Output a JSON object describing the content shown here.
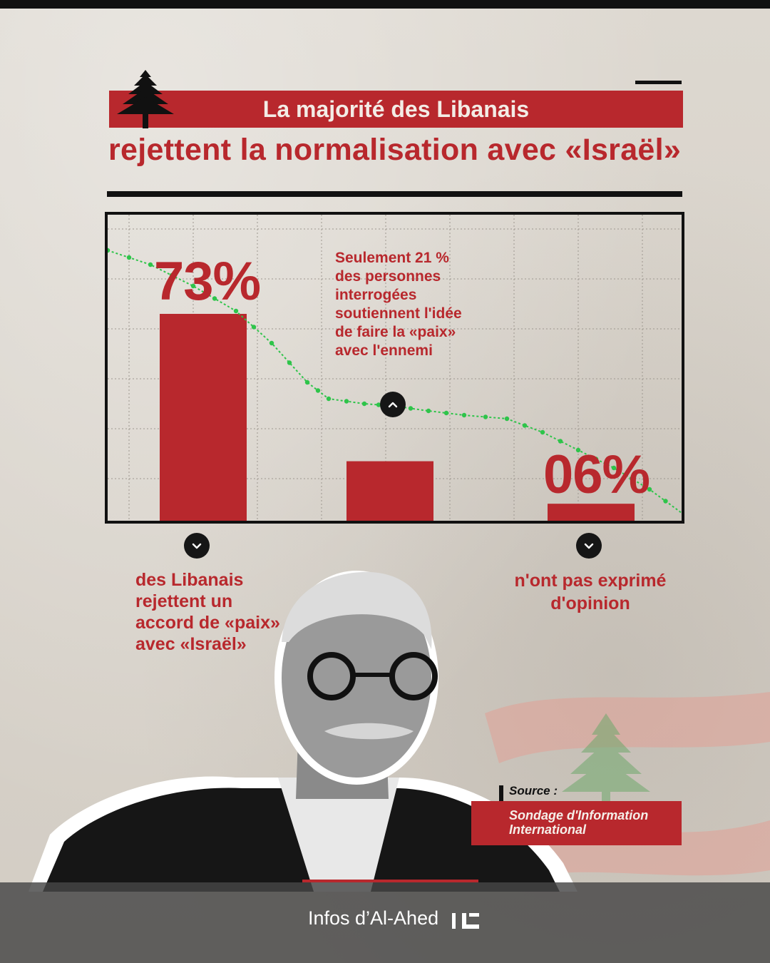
{
  "header": {
    "line1": "La majorité des Libanais",
    "line2": "rejettent la normalisation avec «Israël»"
  },
  "annotations": {
    "value_73": "73%",
    "value_06": "06%",
    "mid_note": "Seulement 21 %\ndes personnes\ninterrogées\nsoutiennent l'idée\nde faire la «paix»\navec l'ennemi",
    "left_caption": "des Libanais\nrejettent un\naccord de «paix»\navec «Israël»",
    "right_caption": "n'ont pas exprimé\nd'opinion"
  },
  "source": {
    "label": "Source :",
    "text": "Sondage d'Information International"
  },
  "footer": {
    "brand": "Infos d’Al-Ahed"
  },
  "colors": {
    "accent_red": "#b8282d",
    "trend_green": "#2ec44a",
    "dark": "#111111"
  },
  "icons": [
    "cedar-icon",
    "chevron-up-icon",
    "chevron-down-icon",
    "al-ahed-logo-icon"
  ],
  "chart_data": {
    "type": "bar",
    "categories": [
      "",
      "",
      ""
    ],
    "values": [
      73,
      21,
      6
    ],
    "title": "",
    "xlabel": "",
    "ylabel": "",
    "ylim": [
      0,
      100
    ],
    "grid": true,
    "legend": "none"
  }
}
